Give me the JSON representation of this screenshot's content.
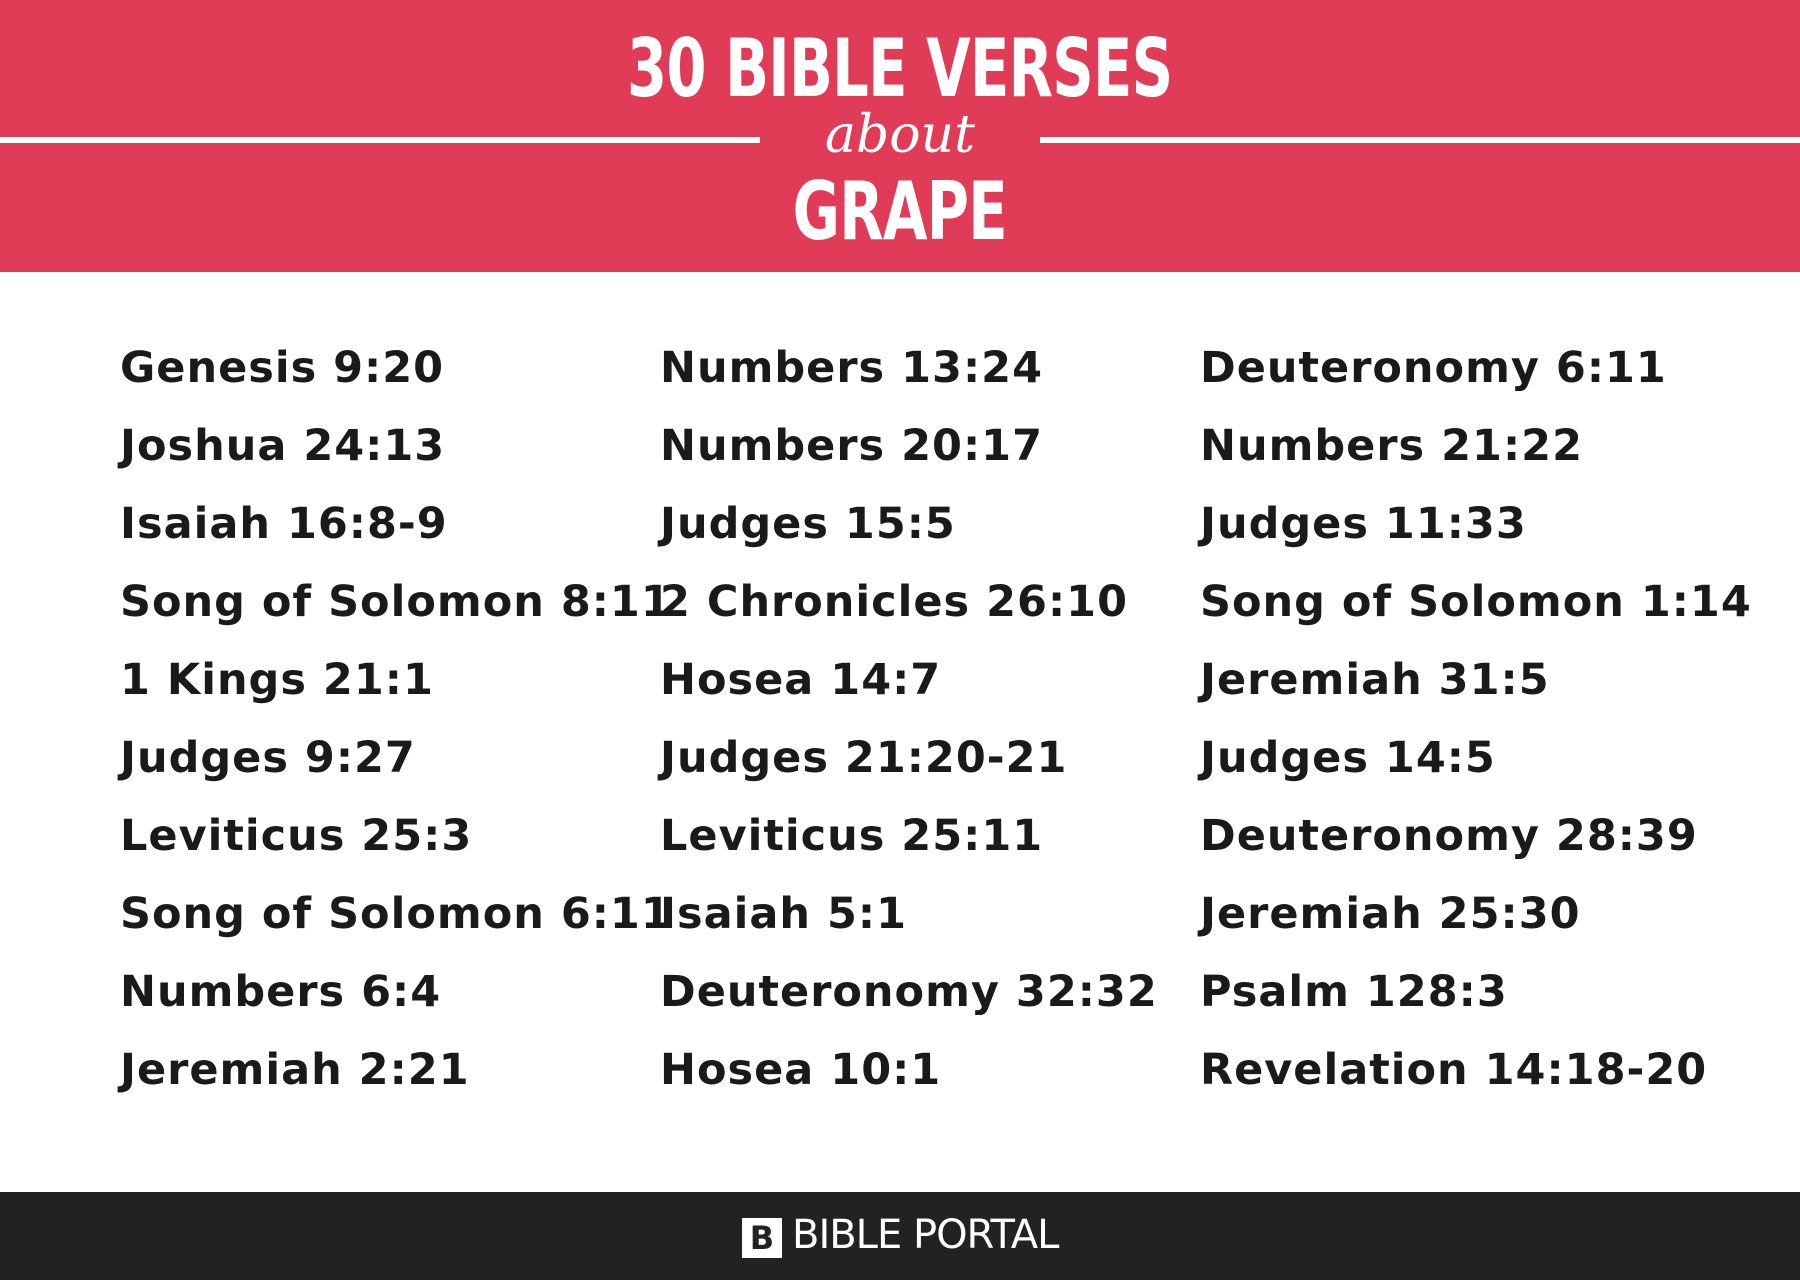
{
  "header": {
    "title": "30 BIBLE VERSES",
    "connector": "about",
    "topic": "GRAPE"
  },
  "verses": {
    "columns": [
      [
        "Genesis 9:20",
        "Joshua 24:13",
        "Isaiah 16:8-9",
        "Song of Solomon 8:11",
        "1 Kings 21:1",
        "Judges 9:27",
        "Leviticus 25:3",
        "Song of Solomon 6:11",
        "Numbers 6:4",
        "Jeremiah 2:21"
      ],
      [
        "Numbers 13:24",
        "Numbers 20:17",
        "Judges 15:5",
        "2 Chronicles 26:10",
        "Hosea 14:7",
        "Judges 21:20-21",
        "Leviticus 25:11",
        "Isaiah 5:1",
        "Deuteronomy 32:32",
        "Hosea 10:1"
      ],
      [
        "Deuteronomy 6:11",
        "Numbers 21:22",
        "Judges 11:33",
        "Song of Solomon 1:14",
        "Jeremiah 31:5",
        "Judges 14:5",
        "Deuteronomy 28:39",
        "Jeremiah 25:30",
        "Psalm 128:3",
        "Revelation 14:18-20"
      ]
    ]
  },
  "footer": {
    "logo": "B",
    "brand": "BIBLE PORTAL"
  }
}
